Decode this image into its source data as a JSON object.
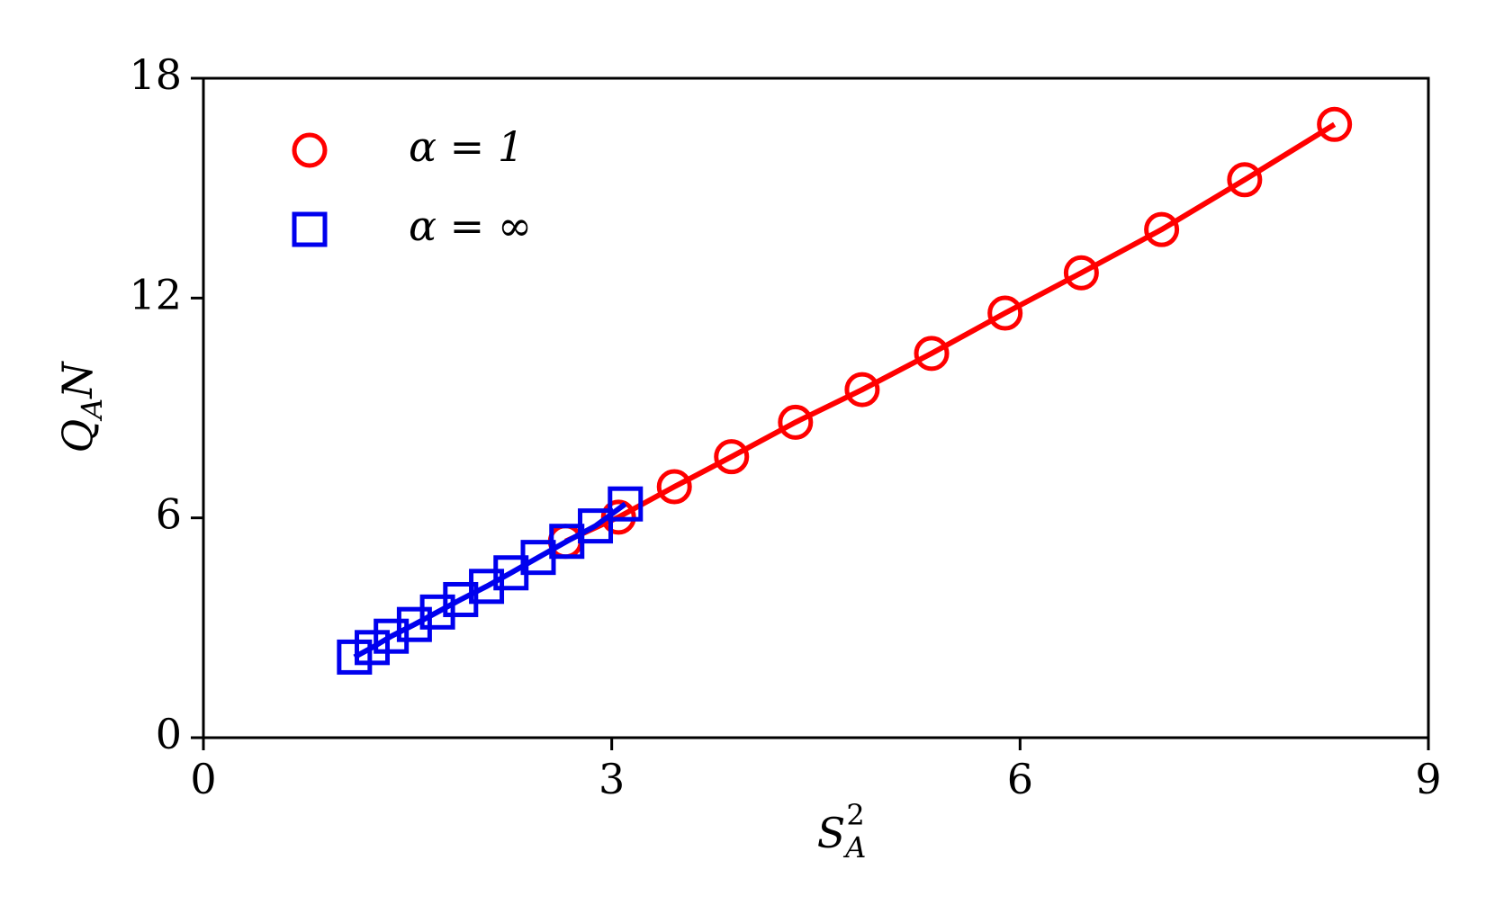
{
  "chart_data": {
    "type": "scatter",
    "xlabel": {
      "base": "S",
      "sub": "A",
      "sup": "2"
    },
    "ylabel": {
      "base": "Q",
      "sub": "A",
      "rest": "N"
    },
    "xlim": [
      0,
      9
    ],
    "xticks": [
      0,
      3,
      6,
      9
    ],
    "ylim": [
      0,
      18
    ],
    "yticks": [
      0,
      6,
      12,
      18
    ],
    "legend": "upper left",
    "series": [
      {
        "name": "α = 1",
        "color": "#ff0000",
        "marker": "circle",
        "x": [
          2.66,
          3.05,
          3.46,
          3.88,
          4.35,
          4.84,
          5.35,
          5.89,
          6.45,
          7.04,
          7.65,
          8.31
        ],
        "values": [
          5.36,
          6.02,
          6.85,
          7.67,
          8.61,
          9.5,
          10.49,
          11.59,
          12.69,
          13.87,
          15.23,
          16.74
        ]
      },
      {
        "name": "α = ∞",
        "color": "#0000ee",
        "marker": "square",
        "x": [
          1.11,
          1.24,
          1.38,
          1.55,
          1.72,
          1.89,
          2.08,
          2.26,
          2.46,
          2.67,
          2.88,
          3.1
        ],
        "values": [
          2.2,
          2.46,
          2.77,
          3.09,
          3.43,
          3.77,
          4.13,
          4.5,
          4.92,
          5.36,
          5.78,
          6.38
        ]
      }
    ]
  }
}
